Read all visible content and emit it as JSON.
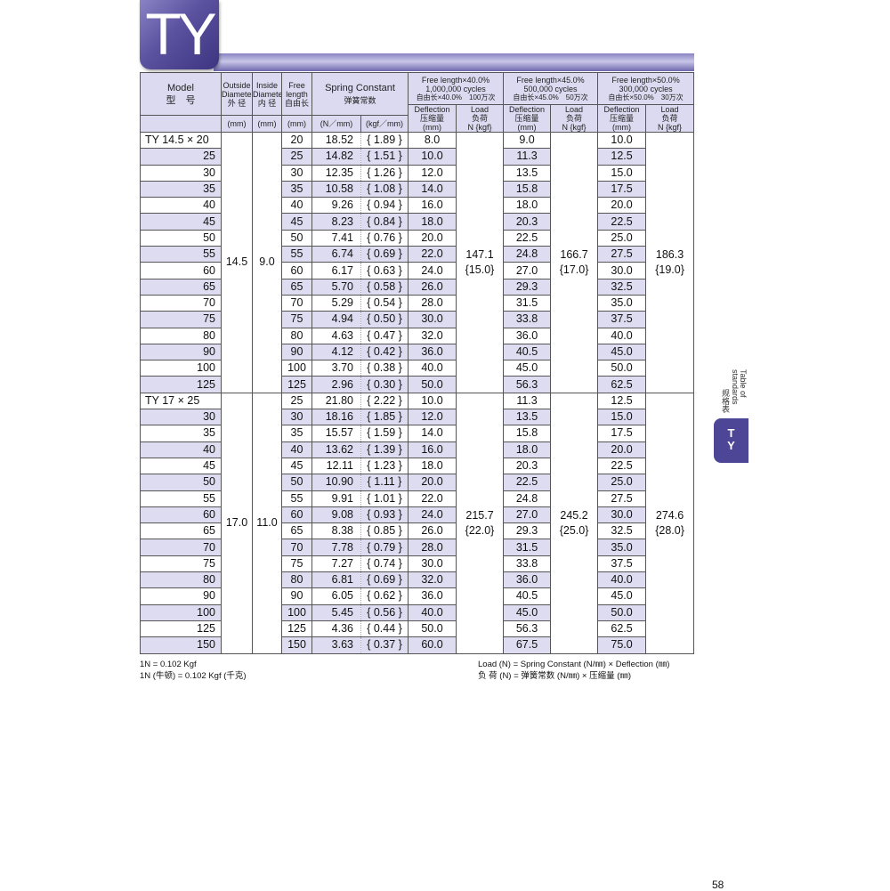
{
  "logo": "TY",
  "header": {
    "model": "Model",
    "model_cn": "型　号",
    "od": "Outside Diameter",
    "od_cn": "外 径",
    "od_unit": "(mm)",
    "id": "Inside Diameter",
    "id_cn": "内 径",
    "id_unit": "(mm)",
    "fl": "Free length",
    "fl_cn": "自由长",
    "fl_unit": "(mm)",
    "sc": "Spring Constant",
    "sc_cn": "弹簧常数",
    "sc_unit1": "(N／mm)",
    "sc_unit2": "(kgf／mm)",
    "groups": [
      {
        "l1": "Free length×40.0%",
        "l2": "1,000,000 cycles",
        "l3": "自由长×40.0%　100万次"
      },
      {
        "l1": "Free length×45.0%",
        "l2": "500,000 cycles",
        "l3": "自由长×45.0%　50万次"
      },
      {
        "l1": "Free length×50.0%",
        "l2": "300,000 cycles",
        "l3": "自由长×50.0%　30万次"
      }
    ],
    "defl": "Deflection",
    "defl_cn": "压缩量",
    "defl_unit": "(mm)",
    "load": "Load",
    "load_cn": "负荷",
    "load_unit": "N {kgf}"
  },
  "groups": [
    {
      "od": "14.5",
      "id": "9.0",
      "loads": [
        "147.1",
        "{15.0}",
        "166.7",
        "{17.0}",
        "186.3",
        "{19.0}"
      ],
      "rows": [
        [
          "TY 14.5 × 20",
          "20",
          "18.52",
          "{ 1.89 }",
          "8.0",
          "9.0",
          "10.0"
        ],
        [
          "25",
          "25",
          "14.82",
          "{ 1.51 }",
          "10.0",
          "11.3",
          "12.5"
        ],
        [
          "30",
          "30",
          "12.35",
          "{ 1.26 }",
          "12.0",
          "13.5",
          "15.0"
        ],
        [
          "35",
          "35",
          "10.58",
          "{ 1.08 }",
          "14.0",
          "15.8",
          "17.5"
        ],
        [
          "40",
          "40",
          "9.26",
          "{ 0.94 }",
          "16.0",
          "18.0",
          "20.0"
        ],
        [
          "45",
          "45",
          "8.23",
          "{ 0.84 }",
          "18.0",
          "20.3",
          "22.5"
        ],
        [
          "50",
          "50",
          "7.41",
          "{ 0.76 }",
          "20.0",
          "22.5",
          "25.0"
        ],
        [
          "55",
          "55",
          "6.74",
          "{ 0.69 }",
          "22.0",
          "24.8",
          "27.5"
        ],
        [
          "60",
          "60",
          "6.17",
          "{ 0.63 }",
          "24.0",
          "27.0",
          "30.0"
        ],
        [
          "65",
          "65",
          "5.70",
          "{ 0.58 }",
          "26.0",
          "29.3",
          "32.5"
        ],
        [
          "70",
          "70",
          "5.29",
          "{ 0.54 }",
          "28.0",
          "31.5",
          "35.0"
        ],
        [
          "75",
          "75",
          "4.94",
          "{ 0.50 }",
          "30.0",
          "33.8",
          "37.5"
        ],
        [
          "80",
          "80",
          "4.63",
          "{ 0.47 }",
          "32.0",
          "36.0",
          "40.0"
        ],
        [
          "90",
          "90",
          "4.12",
          "{ 0.42 }",
          "36.0",
          "40.5",
          "45.0"
        ],
        [
          "100",
          "100",
          "3.70",
          "{ 0.38 }",
          "40.0",
          "45.0",
          "50.0"
        ],
        [
          "125",
          "125",
          "2.96",
          "{ 0.30 }",
          "50.0",
          "56.3",
          "62.5"
        ]
      ]
    },
    {
      "od": "17.0",
      "id": "11.0",
      "loads": [
        "215.7",
        "{22.0}",
        "245.2",
        "{25.0}",
        "274.6",
        "{28.0}"
      ],
      "rows": [
        [
          "TY  17 × 25",
          "25",
          "21.80",
          "{ 2.22 }",
          "10.0",
          "11.3",
          "12.5"
        ],
        [
          "30",
          "30",
          "18.16",
          "{ 1.85 }",
          "12.0",
          "13.5",
          "15.0"
        ],
        [
          "35",
          "35",
          "15.57",
          "{ 1.59 }",
          "14.0",
          "15.8",
          "17.5"
        ],
        [
          "40",
          "40",
          "13.62",
          "{ 1.39 }",
          "16.0",
          "18.0",
          "20.0"
        ],
        [
          "45",
          "45",
          "12.11",
          "{ 1.23 }",
          "18.0",
          "20.3",
          "22.5"
        ],
        [
          "50",
          "50",
          "10.90",
          "{ 1.11 }",
          "20.0",
          "22.5",
          "25.0"
        ],
        [
          "55",
          "55",
          "9.91",
          "{ 1.01 }",
          "22.0",
          "24.8",
          "27.5"
        ],
        [
          "60",
          "60",
          "9.08",
          "{ 0.93 }",
          "24.0",
          "27.0",
          "30.0"
        ],
        [
          "65",
          "65",
          "8.38",
          "{ 0.85 }",
          "26.0",
          "29.3",
          "32.5"
        ],
        [
          "70",
          "70",
          "7.78",
          "{ 0.79 }",
          "28.0",
          "31.5",
          "35.0"
        ],
        [
          "75",
          "75",
          "7.27",
          "{ 0.74 }",
          "30.0",
          "33.8",
          "37.5"
        ],
        [
          "80",
          "80",
          "6.81",
          "{ 0.69 }",
          "32.0",
          "36.0",
          "40.0"
        ],
        [
          "90",
          "90",
          "6.05",
          "{ 0.62 }",
          "36.0",
          "40.5",
          "45.0"
        ],
        [
          "100",
          "100",
          "5.45",
          "{ 0.56 }",
          "40.0",
          "45.0",
          "50.0"
        ],
        [
          "125",
          "125",
          "4.36",
          "{ 0.44 }",
          "50.0",
          "56.3",
          "62.5"
        ],
        [
          "150",
          "150",
          "3.63",
          "{ 0.37 }",
          "60.0",
          "67.5",
          "75.0"
        ]
      ]
    }
  ],
  "notes": {
    "left1": "1N = 0.102 Kgf",
    "left2": "1N (牛顿) = 0.102 Kgf (千克)",
    "right1": "Load (N) = Spring Constant (N/㎜) × Deflection (㎜)",
    "right2": "负 荷 (N) = 弹簧常数 (N/㎜) × 压缩量 (㎜)"
  },
  "side_tab": {
    "label_en": "Table of standards",
    "label_cn": "规格表",
    "tab": "T Y"
  },
  "page_number": "58",
  "colors": {
    "accent": "#4d4596",
    "stripe": "#dddcf0",
    "header_bg": "#dcdaf0"
  }
}
